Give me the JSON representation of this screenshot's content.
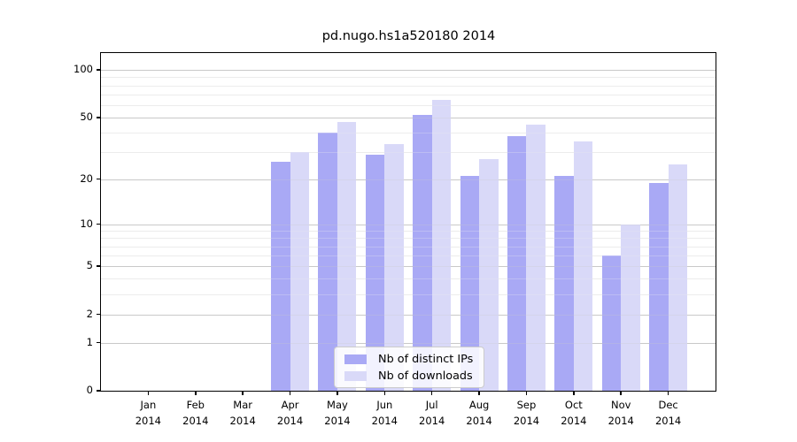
{
  "title": "pd.nugo.hs1a520180 2014",
  "chart_data": {
    "type": "bar",
    "title": "pd.nugo.hs1a520180 2014",
    "scale": "log1p",
    "categories": [
      "Jan",
      "Feb",
      "Mar",
      "Apr",
      "May",
      "Jun",
      "Jul",
      "Aug",
      "Sep",
      "Oct",
      "Nov",
      "Dec"
    ],
    "year": "2014",
    "series": [
      {
        "name": "Nb of distinct IPs",
        "color": "#a9a9f5",
        "values": [
          0,
          0,
          0,
          26,
          40,
          29,
          52,
          21,
          38,
          21,
          6,
          19
        ]
      },
      {
        "name": "Nb of downloads",
        "color": "#d9d9f8",
        "values": [
          0,
          0,
          0,
          30,
          47,
          34,
          65,
          27,
          45,
          35,
          10,
          25
        ]
      }
    ],
    "y_major_ticks": [
      0,
      1,
      2,
      5,
      10,
      20,
      50,
      100
    ],
    "y_minor_gridlines": [
      3,
      4,
      6,
      7,
      8,
      9,
      30,
      40,
      60,
      70,
      80,
      90
    ],
    "ylim": [
      0,
      128
    ],
    "xlabel": "",
    "ylabel": "",
    "grid": true,
    "legend_position": "lower-center",
    "background": "#ffffff"
  }
}
